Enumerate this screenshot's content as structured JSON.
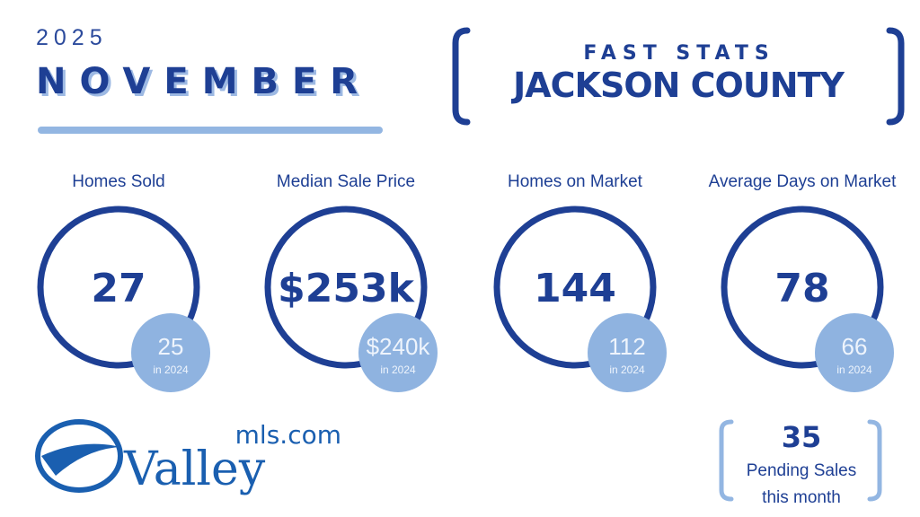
{
  "header": {
    "year": "2025",
    "month": "NOVEMBER",
    "kicker": "FAST STATS",
    "county": "JACKSON COUNTY"
  },
  "stats": [
    {
      "label": "Homes Sold",
      "value": "27",
      "prior": "25",
      "prior_label": "in 2024"
    },
    {
      "label": "Median Sale Price",
      "value": "$253k",
      "prior": "$240k",
      "prior_label": "in 2024"
    },
    {
      "label": "Homes on Market",
      "value": "144",
      "prior": "112",
      "prior_label": "in 2024"
    },
    {
      "label": "Average Days on Market",
      "value": "78",
      "prior": "66",
      "prior_label": "in 2024"
    }
  ],
  "logo": {
    "name": "Valley",
    "domain": "mls.com"
  },
  "pending": {
    "value": "35",
    "label_line1": "Pending Sales",
    "label_line2": "this month"
  }
}
